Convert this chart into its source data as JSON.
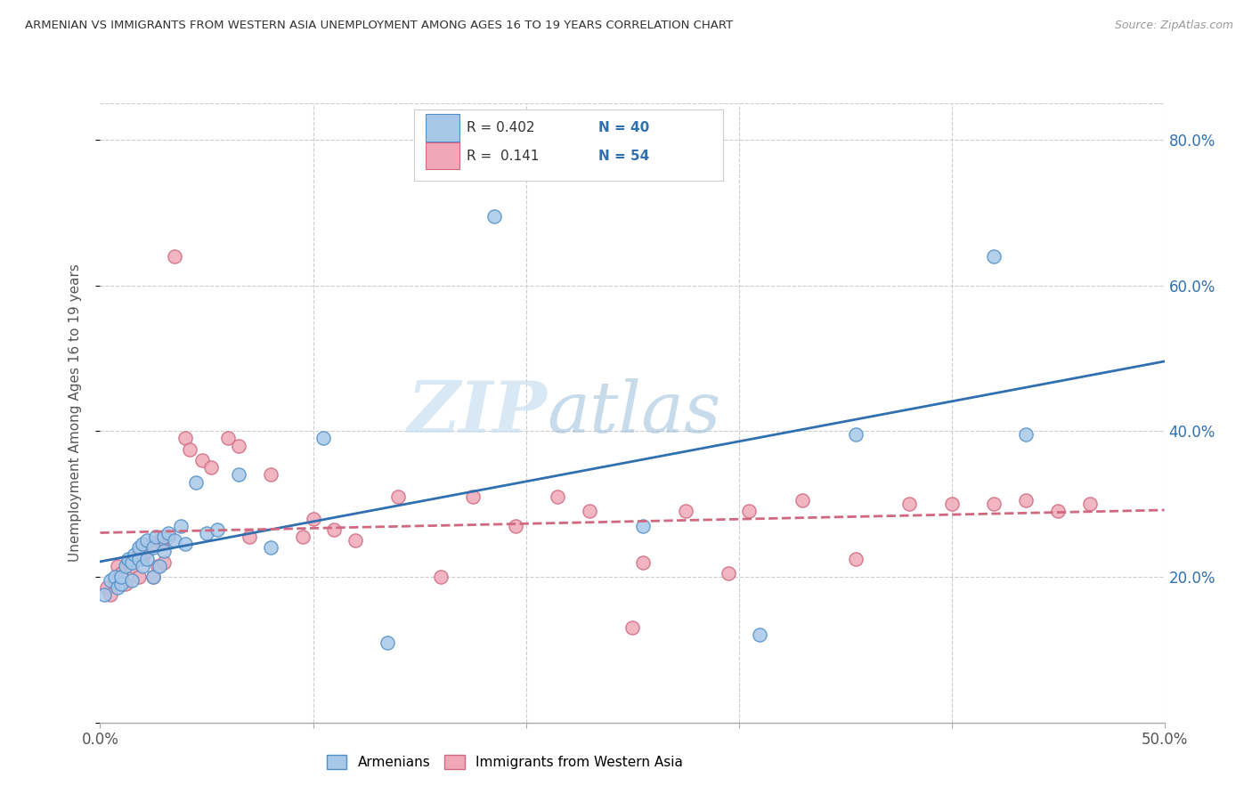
{
  "title": "ARMENIAN VS IMMIGRANTS FROM WESTERN ASIA UNEMPLOYMENT AMONG AGES 16 TO 19 YEARS CORRELATION CHART",
  "source": "Source: ZipAtlas.com",
  "ylabel": "Unemployment Among Ages 16 to 19 years",
  "xlim": [
    0.0,
    0.5
  ],
  "ylim": [
    0.0,
    0.85
  ],
  "xticks": [
    0.0,
    0.1,
    0.2,
    0.3,
    0.4,
    0.5
  ],
  "xticklabels": [
    "0.0%",
    "",
    "",
    "",
    "",
    "50.0%"
  ],
  "yticks": [
    0.0,
    0.2,
    0.4,
    0.6,
    0.8
  ],
  "yticklabels_right": [
    "",
    "20.0%",
    "40.0%",
    "60.0%",
    "80.0%"
  ],
  "watermark_zip": "ZIP",
  "watermark_atlas": "atlas",
  "legend_armenians": "Armenians",
  "legend_immigrants": "Immigrants from Western Asia",
  "r_armenians": "0.402",
  "n_armenians": "40",
  "r_immigrants": "0.141",
  "n_immigrants": "54",
  "blue_fill": "#a8c8e8",
  "blue_edge": "#5090c8",
  "pink_fill": "#f0a8b8",
  "pink_edge": "#d06880",
  "blue_line_color": "#3070b0",
  "pink_line_color": "#d06880",
  "grid_color": "#cccccc",
  "armenians_x": [
    0.002,
    0.005,
    0.007,
    0.008,
    0.01,
    0.01,
    0.012,
    0.013,
    0.015,
    0.015,
    0.016,
    0.018,
    0.018,
    0.02,
    0.02,
    0.022,
    0.022,
    0.025,
    0.025,
    0.026,
    0.028,
    0.03,
    0.03,
    0.032,
    0.035,
    0.038,
    0.04,
    0.045,
    0.05,
    0.055,
    0.065,
    0.08,
    0.105,
    0.135,
    0.185,
    0.255,
    0.31,
    0.355,
    0.42,
    0.435
  ],
  "armenians_y": [
    0.175,
    0.195,
    0.2,
    0.185,
    0.19,
    0.2,
    0.215,
    0.225,
    0.195,
    0.22,
    0.23,
    0.225,
    0.24,
    0.215,
    0.245,
    0.225,
    0.25,
    0.2,
    0.24,
    0.255,
    0.215,
    0.235,
    0.255,
    0.26,
    0.25,
    0.27,
    0.245,
    0.33,
    0.26,
    0.265,
    0.34,
    0.24,
    0.39,
    0.11,
    0.695,
    0.27,
    0.12,
    0.395,
    0.64,
    0.395
  ],
  "immigrants_x": [
    0.003,
    0.005,
    0.007,
    0.008,
    0.01,
    0.012,
    0.013,
    0.015,
    0.016,
    0.018,
    0.018,
    0.02,
    0.02,
    0.022,
    0.022,
    0.025,
    0.025,
    0.027,
    0.028,
    0.03,
    0.03,
    0.032,
    0.035,
    0.04,
    0.042,
    0.048,
    0.052,
    0.06,
    0.065,
    0.07,
    0.08,
    0.095,
    0.1,
    0.11,
    0.12,
    0.14,
    0.16,
    0.175,
    0.195,
    0.215,
    0.23,
    0.25,
    0.255,
    0.275,
    0.295,
    0.305,
    0.33,
    0.355,
    0.38,
    0.4,
    0.42,
    0.435,
    0.45,
    0.465
  ],
  "immigrants_y": [
    0.185,
    0.175,
    0.195,
    0.215,
    0.205,
    0.19,
    0.22,
    0.215,
    0.225,
    0.2,
    0.235,
    0.225,
    0.23,
    0.235,
    0.24,
    0.2,
    0.245,
    0.215,
    0.25,
    0.22,
    0.25,
    0.255,
    0.64,
    0.39,
    0.375,
    0.36,
    0.35,
    0.39,
    0.38,
    0.255,
    0.34,
    0.255,
    0.28,
    0.265,
    0.25,
    0.31,
    0.2,
    0.31,
    0.27,
    0.31,
    0.29,
    0.13,
    0.22,
    0.29,
    0.205,
    0.29,
    0.305,
    0.225,
    0.3,
    0.3,
    0.3,
    0.305,
    0.29,
    0.3
  ]
}
